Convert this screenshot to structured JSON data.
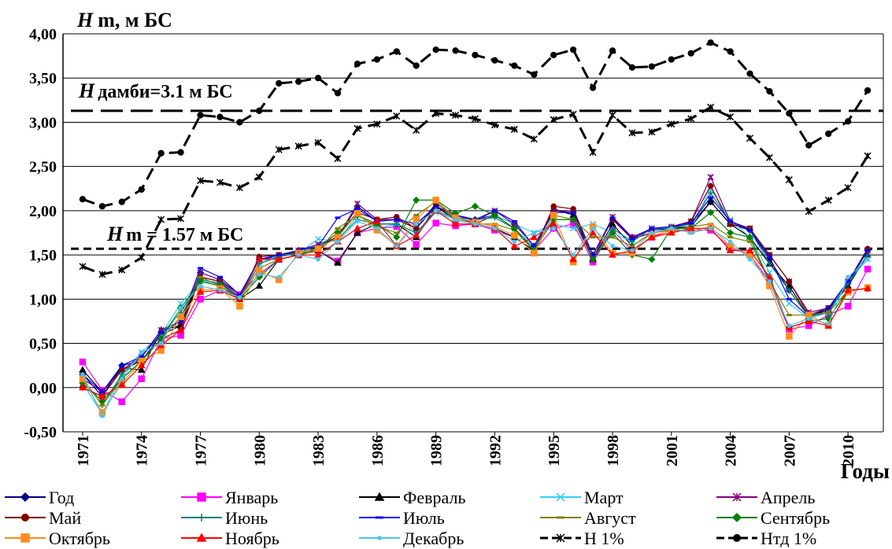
{
  "chart_data": {
    "type": "line",
    "title": {
      "var": "H",
      "text": "m,  м БС"
    },
    "x_label": "Годы",
    "x": [
      1971,
      1972,
      1973,
      1974,
      1975,
      1976,
      1977,
      1978,
      1979,
      1980,
      1981,
      1982,
      1983,
      1984,
      1985,
      1986,
      1987,
      1988,
      1989,
      1990,
      1991,
      1992,
      1993,
      1994,
      1995,
      1996,
      1997,
      1998,
      1999,
      2000,
      2001,
      2002,
      2003,
      2004,
      2005,
      2006,
      2007,
      2008,
      2009,
      2010,
      2011
    ],
    "xlim": [
      1970,
      2011.8
    ],
    "xticks": [
      1971,
      1974,
      1977,
      1980,
      1983,
      1986,
      1989,
      1992,
      1995,
      1998,
      2001,
      2004,
      2007,
      2010
    ],
    "ylim": [
      -0.5,
      4
    ],
    "yticks": [
      {
        "value": -0.5,
        "label": "-0,50"
      },
      {
        "value": 0,
        "label": "0,00"
      },
      {
        "value": 0.5,
        "label": "0,50"
      },
      {
        "value": 1,
        "label": "1,00"
      },
      {
        "value": 1.5,
        "label": "1,50"
      },
      {
        "value": 2,
        "label": "2,00"
      },
      {
        "value": 2.5,
        "label": "2,50"
      },
      {
        "value": 3,
        "label": "3,00"
      },
      {
        "value": 3.5,
        "label": "3,50"
      },
      {
        "value": 4,
        "label": "4,00"
      }
    ],
    "grid": true,
    "hlines": [
      {
        "value": 3.13,
        "var": "H",
        "label": "дамби=3.1 м БС",
        "dash": "28 10"
      },
      {
        "value": 1.57,
        "var": "H",
        "label": "m = 1.57 м БС",
        "dash": "10 6"
      }
    ],
    "series": [
      {
        "name": "Год",
        "color": "#000080",
        "marker": "diamond",
        "values": [
          0.15,
          -0.1,
          0.25,
          0.3,
          0.6,
          0.7,
          1.3,
          1.22,
          1.05,
          1.45,
          1.48,
          1.55,
          1.6,
          1.7,
          2.05,
          1.88,
          1.9,
          1.8,
          2.08,
          1.95,
          1.9,
          1.95,
          1.85,
          1.6,
          2.0,
          1.98,
          1.5,
          1.9,
          1.7,
          1.78,
          1.8,
          1.85,
          2.1,
          1.85,
          1.78,
          1.45,
          1.1,
          0.8,
          0.88,
          1.18,
          1.55
        ]
      },
      {
        "name": "Январь",
        "color": "#ff00ff",
        "marker": "square",
        "values": [
          0.29,
          -0.03,
          -0.16,
          0.1,
          0.55,
          0.59,
          1.0,
          1.1,
          1.05,
          1.28,
          1.45,
          1.5,
          1.55,
          1.43,
          1.75,
          1.8,
          1.82,
          1.62,
          1.86,
          1.83,
          1.85,
          1.78,
          1.7,
          1.55,
          1.8,
          1.85,
          1.42,
          1.78,
          1.55,
          1.7,
          1.78,
          1.78,
          1.78,
          1.58,
          1.5,
          1.2,
          0.66,
          0.7,
          0.82,
          0.92,
          1.34
        ]
      },
      {
        "name": "Февраль",
        "color": "#000000",
        "marker": "triangle",
        "values": [
          0.2,
          -0.05,
          0.22,
          0.2,
          0.65,
          0.7,
          1.25,
          1.2,
          1.0,
          1.15,
          1.45,
          1.5,
          1.55,
          1.41,
          1.75,
          1.85,
          1.85,
          1.7,
          2.05,
          1.9,
          1.85,
          1.8,
          1.7,
          1.55,
          2.02,
          1.95,
          1.45,
          1.85,
          1.6,
          1.75,
          1.8,
          1.82,
          2.1,
          1.85,
          1.7,
          1.4,
          1.15,
          0.8,
          0.88,
          1.15,
          1.5
        ]
      },
      {
        "name": "Март",
        "color": "#33ccff",
        "marker": "x",
        "values": [
          0.05,
          -0.3,
          0.15,
          0.4,
          0.6,
          0.95,
          1.2,
          1.18,
          1.0,
          1.4,
          1.5,
          1.52,
          1.68,
          1.65,
          1.95,
          1.8,
          1.85,
          1.75,
          1.98,
          1.9,
          1.88,
          1.95,
          1.85,
          1.75,
          1.85,
          1.8,
          1.85,
          1.75,
          1.65,
          1.8,
          1.8,
          1.8,
          2.25,
          1.9,
          1.7,
          1.3,
          0.95,
          0.78,
          0.85,
          1.2,
          1.45
        ]
      },
      {
        "name": "Апрель",
        "color": "#800080",
        "marker": "star",
        "values": [
          0.1,
          -0.05,
          0.2,
          0.35,
          0.65,
          0.75,
          1.3,
          1.22,
          1.02,
          1.45,
          1.5,
          1.55,
          1.62,
          1.7,
          2.08,
          1.9,
          1.9,
          1.8,
          2.05,
          1.95,
          1.88,
          2.0,
          1.85,
          1.6,
          2.0,
          2.0,
          1.45,
          1.93,
          1.7,
          1.8,
          1.82,
          1.88,
          2.38,
          1.88,
          1.8,
          1.5,
          1.2,
          0.85,
          0.9,
          1.2,
          1.55
        ]
      },
      {
        "name": "Май",
        "color": "#800000",
        "marker": "circle",
        "values": [
          0.0,
          -0.1,
          0.2,
          0.3,
          0.55,
          0.65,
          1.25,
          1.2,
          1.0,
          1.48,
          1.5,
          1.53,
          1.55,
          1.72,
          1.98,
          1.9,
          1.93,
          1.8,
          2.05,
          1.93,
          1.85,
          1.95,
          1.8,
          1.55,
          2.05,
          2.02,
          1.5,
          1.9,
          1.68,
          1.75,
          1.8,
          1.88,
          2.28,
          1.85,
          1.8,
          1.5,
          1.2,
          0.82,
          0.9,
          1.2,
          1.57
        ]
      },
      {
        "name": "Июнь",
        "color": "#008080",
        "marker": "plus",
        "values": [
          0.1,
          -0.2,
          0.15,
          0.35,
          0.6,
          0.85,
          1.22,
          1.18,
          1.0,
          1.4,
          1.48,
          1.52,
          1.6,
          1.68,
          1.9,
          1.85,
          1.85,
          1.75,
          2.0,
          1.92,
          1.9,
          1.92,
          1.8,
          1.58,
          1.9,
          1.9,
          1.45,
          1.8,
          1.65,
          1.8,
          1.8,
          1.85,
          2.2,
          1.88,
          1.78,
          1.4,
          1.1,
          0.8,
          0.85,
          1.18,
          1.5
        ]
      },
      {
        "name": "Июль",
        "color": "#0000ff",
        "marker": "dash",
        "values": [
          0.15,
          -0.05,
          0.25,
          0.35,
          0.62,
          0.75,
          1.35,
          1.25,
          1.05,
          1.45,
          1.5,
          1.55,
          1.6,
          1.92,
          2.02,
          1.88,
          1.9,
          1.85,
          2.05,
          1.95,
          1.9,
          2.0,
          1.88,
          1.6,
          1.98,
          1.98,
          1.5,
          1.92,
          1.68,
          1.8,
          1.82,
          1.86,
          2.15,
          1.88,
          1.78,
          1.48,
          1.0,
          0.8,
          0.9,
          1.2,
          1.55
        ]
      },
      {
        "name": "Август",
        "color": "#808000",
        "marker": "dash",
        "values": [
          0.1,
          -0.2,
          0.1,
          0.3,
          0.55,
          0.8,
          1.25,
          1.15,
          1.0,
          1.35,
          1.45,
          1.5,
          1.55,
          1.8,
          1.95,
          1.82,
          1.75,
          1.95,
          2.1,
          1.9,
          1.85,
          1.85,
          1.78,
          1.55,
          1.95,
          1.9,
          1.7,
          1.7,
          1.6,
          1.75,
          1.78,
          1.82,
          1.85,
          1.7,
          1.65,
          1.2,
          0.82,
          0.82,
          0.85,
          1.1,
          1.12
        ]
      },
      {
        "name": "Сентябрь",
        "color": "#008000",
        "marker": "diamond",
        "values": [
          0.05,
          -0.15,
          0.1,
          0.3,
          0.55,
          0.9,
          1.2,
          1.15,
          1.0,
          1.25,
          1.45,
          1.5,
          1.58,
          1.75,
          1.95,
          1.85,
          1.7,
          2.12,
          2.12,
          1.97,
          2.05,
          1.95,
          1.8,
          1.55,
          1.9,
          1.9,
          1.45,
          1.75,
          1.5,
          1.45,
          1.8,
          1.8,
          1.98,
          1.75,
          1.7,
          1.2,
          0.68,
          0.75,
          0.78,
          1.1,
          1.12
        ]
      },
      {
        "name": "Октябрь",
        "color": "#ff8c1a",
        "marker": "square",
        "values": [
          0.1,
          -0.28,
          0.05,
          0.3,
          0.42,
          0.8,
          1.1,
          1.12,
          0.92,
          1.32,
          1.22,
          1.52,
          1.57,
          1.7,
          1.97,
          1.78,
          1.6,
          1.9,
          2.12,
          1.92,
          1.87,
          1.82,
          1.72,
          1.52,
          1.95,
          1.42,
          1.82,
          1.52,
          1.52,
          1.72,
          1.77,
          1.77,
          1.82,
          1.6,
          1.5,
          1.15,
          0.58,
          0.82,
          0.7,
          1.08,
          1.13
        ]
      },
      {
        "name": "Ноябрь",
        "color": "#ff0000",
        "marker": "triangle",
        "values": [
          0.0,
          -0.1,
          0.03,
          0.25,
          0.48,
          0.65,
          1.08,
          1.1,
          1.0,
          1.45,
          1.45,
          1.5,
          1.5,
          1.65,
          1.8,
          1.88,
          1.6,
          1.72,
          2.0,
          1.85,
          1.85,
          1.8,
          1.6,
          1.7,
          1.85,
          1.45,
          1.75,
          1.5,
          1.55,
          1.7,
          1.75,
          1.8,
          1.8,
          1.55,
          1.55,
          1.25,
          0.68,
          0.75,
          0.7,
          1.1,
          1.12
        ]
      },
      {
        "name": "Декабрь",
        "color": "#4dc3f0",
        "marker": "dot",
        "values": [
          0.15,
          -0.32,
          0.1,
          0.4,
          0.5,
          0.9,
          1.15,
          1.1,
          1.02,
          1.28,
          1.25,
          1.5,
          1.45,
          1.65,
          1.88,
          1.8,
          1.6,
          1.85,
          2.0,
          1.9,
          1.85,
          1.8,
          1.65,
          1.75,
          1.8,
          1.5,
          1.8,
          1.6,
          1.55,
          1.75,
          1.8,
          1.75,
          1.8,
          1.65,
          1.45,
          1.2,
          0.7,
          0.78,
          0.72,
          1.25,
          1.45
        ]
      },
      {
        "name": "Н 1%",
        "color": "#000000",
        "marker": "star",
        "dashed": true,
        "values": [
          1.37,
          1.28,
          1.33,
          1.47,
          1.9,
          1.91,
          2.34,
          2.32,
          2.26,
          2.38,
          2.69,
          2.73,
          2.77,
          2.59,
          2.93,
          2.98,
          3.07,
          2.91,
          3.1,
          3.08,
          3.04,
          2.97,
          2.92,
          2.81,
          3.03,
          3.09,
          2.66,
          3.08,
          2.88,
          2.89,
          2.98,
          3.04,
          3.17,
          3.06,
          2.82,
          2.6,
          2.35,
          1.99,
          2.12,
          2.26,
          2.62
        ]
      },
      {
        "name": "Нтд 1%",
        "color": "#000000",
        "marker": "circle",
        "dashed": true,
        "values": [
          2.13,
          2.05,
          2.1,
          2.24,
          2.65,
          2.66,
          3.08,
          3.06,
          3.0,
          3.13,
          3.44,
          3.46,
          3.5,
          3.33,
          3.66,
          3.71,
          3.8,
          3.64,
          3.82,
          3.81,
          3.76,
          3.7,
          3.64,
          3.54,
          3.76,
          3.82,
          3.39,
          3.81,
          3.62,
          3.63,
          3.71,
          3.78,
          3.9,
          3.8,
          3.55,
          3.35,
          3.1,
          2.74,
          2.87,
          3.01,
          3.36
        ]
      }
    ]
  }
}
